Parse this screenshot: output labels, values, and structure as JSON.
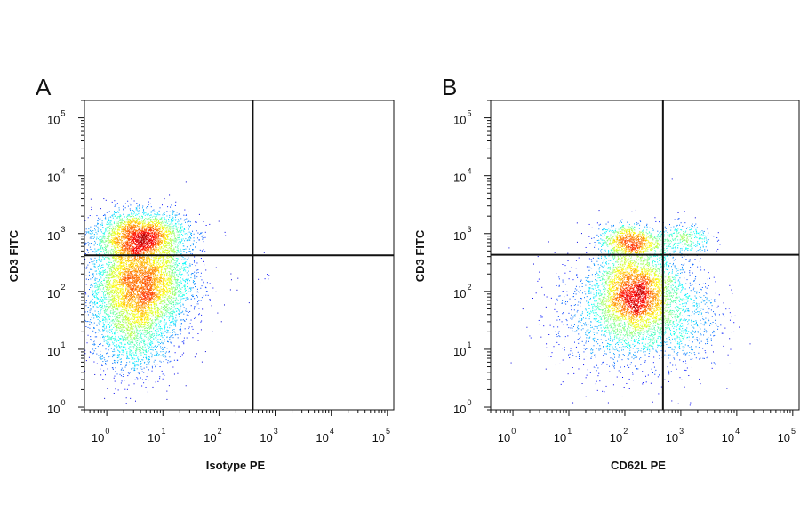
{
  "chart_data": [
    {
      "type": "scatter",
      "panel_label": "A",
      "xlabel": "Isotype PE",
      "ylabel": "CD3 FITC",
      "x_scale": "log",
      "y_scale": "log",
      "xlim": [
        0.4,
        130000
      ],
      "ylim": [
        0.9,
        200000
      ],
      "x_ticks": [
        {
          "base": "10",
          "exp": "0",
          "value": 1
        },
        {
          "base": "10",
          "exp": "1",
          "value": 10
        },
        {
          "base": "10",
          "exp": "2",
          "value": 100
        },
        {
          "base": "10",
          "exp": "3",
          "value": 1000
        },
        {
          "base": "10",
          "exp": "4",
          "value": 10000
        },
        {
          "base": "10",
          "exp": "5",
          "value": 100000
        }
      ],
      "y_ticks": [
        {
          "base": "10",
          "exp": "0",
          "value": 1
        },
        {
          "base": "10",
          "exp": "1",
          "value": 10
        },
        {
          "base": "10",
          "exp": "2",
          "value": 100
        },
        {
          "base": "10",
          "exp": "3",
          "value": 1000
        },
        {
          "base": "10",
          "exp": "4",
          "value": 10000
        },
        {
          "base": "10",
          "exp": "5",
          "value": 100000
        }
      ],
      "gate": {
        "x": 400,
        "y": 420
      },
      "populations": [
        {
          "center": [
            4,
            900
          ],
          "spread": [
            0.42,
            0.22
          ],
          "count": 2600
        },
        {
          "center": [
            4,
            150
          ],
          "spread": [
            0.45,
            0.4
          ],
          "count": 4200
        },
        {
          "center": [
            3,
            25
          ],
          "spread": [
            0.4,
            0.45
          ],
          "count": 1800
        },
        {
          "center": [
            400,
            200
          ],
          "spread": [
            0.2,
            0.2
          ],
          "count": 12
        }
      ],
      "grid": false,
      "legend": "none"
    },
    {
      "type": "scatter",
      "panel_label": "B",
      "xlabel": "CD62L PE",
      "ylabel": "CD3 FITC",
      "x_scale": "log",
      "y_scale": "log",
      "xlim": [
        0.4,
        130000
      ],
      "ylim": [
        0.9,
        200000
      ],
      "x_ticks": [
        {
          "base": "10",
          "exp": "0",
          "value": 1
        },
        {
          "base": "10",
          "exp": "1",
          "value": 10
        },
        {
          "base": "10",
          "exp": "2",
          "value": 100
        },
        {
          "base": "10",
          "exp": "3",
          "value": 1000
        },
        {
          "base": "10",
          "exp": "4",
          "value": 10000
        },
        {
          "base": "10",
          "exp": "5",
          "value": 100000
        }
      ],
      "y_ticks": [
        {
          "base": "10",
          "exp": "0",
          "value": 1
        },
        {
          "base": "10",
          "exp": "1",
          "value": 10
        },
        {
          "base": "10",
          "exp": "2",
          "value": 100
        },
        {
          "base": "10",
          "exp": "3",
          "value": 1000
        },
        {
          "base": "10",
          "exp": "4",
          "value": 10000
        },
        {
          "base": "10",
          "exp": "5",
          "value": 100000
        }
      ],
      "gate": {
        "x": 480,
        "y": 430
      },
      "populations": [
        {
          "center": [
            120,
            750
          ],
          "spread": [
            0.28,
            0.15
          ],
          "count": 900
        },
        {
          "center": [
            1100,
            800
          ],
          "spread": [
            0.25,
            0.14
          ],
          "count": 350
        },
        {
          "center": [
            150,
            90
          ],
          "spread": [
            0.35,
            0.38
          ],
          "count": 3000
        },
        {
          "center": [
            60,
            40
          ],
          "spread": [
            0.55,
            0.55
          ],
          "count": 1200
        },
        {
          "center": [
            800,
            40
          ],
          "spread": [
            0.4,
            0.5
          ],
          "count": 900
        }
      ],
      "grid": false,
      "legend": "none"
    }
  ]
}
